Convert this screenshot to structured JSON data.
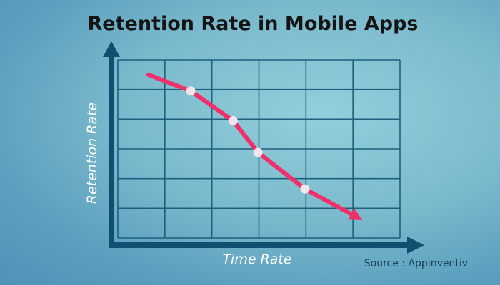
{
  "chart_data": {
    "type": "line",
    "title": "Retention Rate in Mobile Apps",
    "xlabel": "Time Rate",
    "ylabel": "Retention Rate",
    "source": "Source : Appinventiv",
    "grid": true,
    "grid_columns": 6,
    "grid_rows": 6,
    "xlim": [
      0,
      6
    ],
    "ylim": [
      0,
      6
    ],
    "series": [
      {
        "x": [
          0.65,
          1.55,
          2.45,
          2.98,
          3.98,
          5.2
        ],
        "y": [
          5.5,
          4.95,
          3.95,
          2.88,
          1.65,
          0.6
        ],
        "markers": [
          false,
          true,
          true,
          true,
          true,
          false
        ],
        "end_arrow": true
      }
    ],
    "colors": {
      "line": "#f0306a",
      "marker": "#f3e4ee",
      "grid": "#1e5f7d",
      "axis": "#0f4f6f",
      "title": "#141414",
      "axis_label": "#ffffff",
      "source": "#1b3e55"
    }
  }
}
